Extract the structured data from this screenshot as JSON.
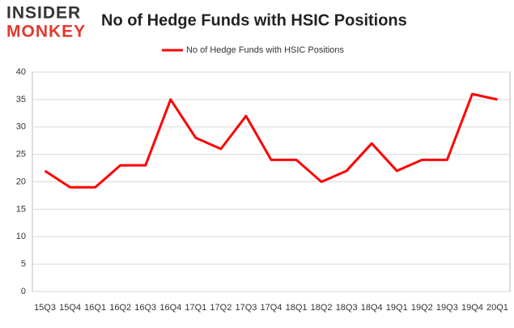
{
  "logo": {
    "line1": "INSIDER",
    "line2": "MONKEY"
  },
  "chart_data": {
    "type": "line",
    "title": "No of Hedge Funds with HSIC Positions",
    "categories": [
      "15Q3",
      "15Q4",
      "16Q1",
      "16Q2",
      "16Q3",
      "16Q4",
      "17Q1",
      "17Q2",
      "17Q3",
      "17Q4",
      "18Q1",
      "18Q2",
      "18Q3",
      "18Q4",
      "19Q1",
      "19Q2",
      "19Q3",
      "19Q4",
      "20Q1"
    ],
    "series": [
      {
        "name": "No of Hedge Funds with HSIC Positions",
        "color": "#ff0000",
        "values": [
          22,
          19,
          19,
          23,
          23,
          35,
          28,
          26,
          32,
          24,
          24,
          20,
          22,
          27,
          22,
          24,
          24,
          36,
          35
        ]
      }
    ],
    "ylim": [
      0,
      40
    ],
    "yticks": [
      0,
      5,
      10,
      15,
      20,
      25,
      30,
      35,
      40
    ],
    "grid": true,
    "legend": "top"
  }
}
